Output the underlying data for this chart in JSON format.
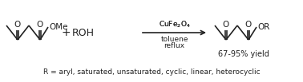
{
  "bg_color": "#ffffff",
  "line_color": "#222222",
  "text_color": "#222222",
  "arrow_above": "CuFe$_2$O$_4$",
  "arrow_line1": "toluene",
  "arrow_line2": "reflux",
  "plus_sign": "+",
  "reagent": "ROH",
  "yield_text": "67-95% yield",
  "r_text": "R = aryl, saturated, unsaturated, cyclic, linear, heterocyclic",
  "ome_label": "OMe",
  "or_label": "OR",
  "o_label": "O",
  "figw": 3.78,
  "figh": 1.03,
  "dpi": 100
}
